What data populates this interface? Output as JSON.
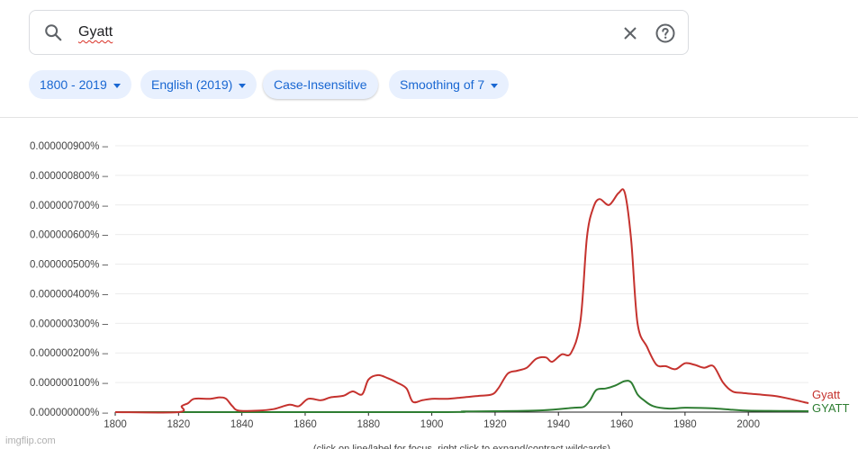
{
  "search": {
    "query": "Gyatt",
    "search_icon": "search-icon",
    "clear_icon": "close-icon",
    "help_icon": "help-circle-icon"
  },
  "filters": {
    "years": "1800 - 2019",
    "corpus": "English (2019)",
    "case": "Case-Insensitive",
    "smoothing": "Smoothing of 7"
  },
  "colors": {
    "accent": "#1967d2",
    "chip_bg": "#e8f0fe",
    "gyatt": "#c5322e",
    "GYATT": "#2e7d32"
  },
  "footer_note": "(click on line/label for focus, right click to expand/contract wildcards)",
  "watermark": "imgflip.com",
  "chart_data": {
    "type": "line",
    "xlim": [
      1800,
      2019
    ],
    "ylim": [
      0,
      9e-07
    ],
    "x_ticks": [
      1800,
      1820,
      1840,
      1860,
      1880,
      1900,
      1920,
      1940,
      1960,
      1980,
      2000
    ],
    "y_ticks": [
      "0.000000000%",
      "0.000000100%",
      "0.000000200%",
      "0.000000300%",
      "0.000000400%",
      "0.000000500%",
      "0.000000600%",
      "0.000000700%",
      "0.000000800%",
      "0.000000900%"
    ],
    "grid": true,
    "legend": "right-end-labels",
    "series": [
      {
        "name": "Gyatt",
        "color": "#c5322e",
        "points": [
          [
            1800,
            0
          ],
          [
            1820,
            0
          ],
          [
            1821,
            2e-08
          ],
          [
            1823,
            3e-08
          ],
          [
            1825,
            4.5e-08
          ],
          [
            1830,
            4.5e-08
          ],
          [
            1833,
            5e-08
          ],
          [
            1835,
            4.5e-08
          ],
          [
            1837,
            2e-08
          ],
          [
            1839,
            5e-09
          ],
          [
            1845,
            5e-09
          ],
          [
            1850,
            1e-08
          ],
          [
            1855,
            2.5e-08
          ],
          [
            1858,
            2e-08
          ],
          [
            1861,
            4.5e-08
          ],
          [
            1865,
            4e-08
          ],
          [
            1868,
            5e-08
          ],
          [
            1872,
            5.5e-08
          ],
          [
            1875,
            7e-08
          ],
          [
            1878,
            6e-08
          ],
          [
            1880,
            1.1e-07
          ],
          [
            1883,
            1.25e-07
          ],
          [
            1886,
            1.15e-07
          ],
          [
            1889,
            1e-07
          ],
          [
            1892,
            8e-08
          ],
          [
            1894,
            3.5e-08
          ],
          [
            1897,
            4e-08
          ],
          [
            1900,
            4.5e-08
          ],
          [
            1905,
            4.5e-08
          ],
          [
            1910,
            5e-08
          ],
          [
            1915,
            5.5e-08
          ],
          [
            1919,
            6e-08
          ],
          [
            1921,
            8e-08
          ],
          [
            1924,
            1.3e-07
          ],
          [
            1927,
            1.4e-07
          ],
          [
            1930,
            1.5e-07
          ],
          [
            1933,
            1.8e-07
          ],
          [
            1936,
            1.85e-07
          ],
          [
            1938,
            1.7e-07
          ],
          [
            1941,
            1.95e-07
          ],
          [
            1944,
            2e-07
          ],
          [
            1947,
            3.1e-07
          ],
          [
            1949,
            5.9e-07
          ],
          [
            1951,
            6.9e-07
          ],
          [
            1953,
            7.2e-07
          ],
          [
            1956,
            7e-07
          ],
          [
            1959,
            7.4e-07
          ],
          [
            1961,
            7.4e-07
          ],
          [
            1963,
            5.8e-07
          ],
          [
            1965,
            3e-07
          ],
          [
            1968,
            2.2e-07
          ],
          [
            1971,
            1.6e-07
          ],
          [
            1974,
            1.55e-07
          ],
          [
            1977,
            1.45e-07
          ],
          [
            1980,
            1.65e-07
          ],
          [
            1983,
            1.6e-07
          ],
          [
            1986,
            1.5e-07
          ],
          [
            1989,
            1.55e-07
          ],
          [
            1992,
            1e-07
          ],
          [
            1995,
            7e-08
          ],
          [
            1998,
            6.5e-08
          ],
          [
            2003,
            6e-08
          ],
          [
            2008,
            5.5e-08
          ],
          [
            2013,
            4.5e-08
          ],
          [
            2019,
            3e-08
          ]
        ]
      },
      {
        "name": "GYATT",
        "color": "#2e7d32",
        "points": [
          [
            1800,
            0
          ],
          [
            1900,
            0
          ],
          [
            1910,
            2e-09
          ],
          [
            1920,
            3e-09
          ],
          [
            1935,
            6e-09
          ],
          [
            1945,
            1.5e-08
          ],
          [
            1948,
            1.8e-08
          ],
          [
            1950,
            4e-08
          ],
          [
            1952,
            7.5e-08
          ],
          [
            1955,
            8e-08
          ],
          [
            1958,
            9e-08
          ],
          [
            1961,
            1.05e-07
          ],
          [
            1963,
            1e-07
          ],
          [
            1965,
            6e-08
          ],
          [
            1967,
            4e-08
          ],
          [
            1970,
            2e-08
          ],
          [
            1975,
            1.2e-08
          ],
          [
            1980,
            1.5e-08
          ],
          [
            1985,
            1.4e-08
          ],
          [
            1990,
            1.2e-08
          ],
          [
            1995,
            8e-09
          ],
          [
            2000,
            5e-09
          ],
          [
            2010,
            4e-09
          ],
          [
            2019,
            3e-09
          ]
        ]
      }
    ]
  }
}
